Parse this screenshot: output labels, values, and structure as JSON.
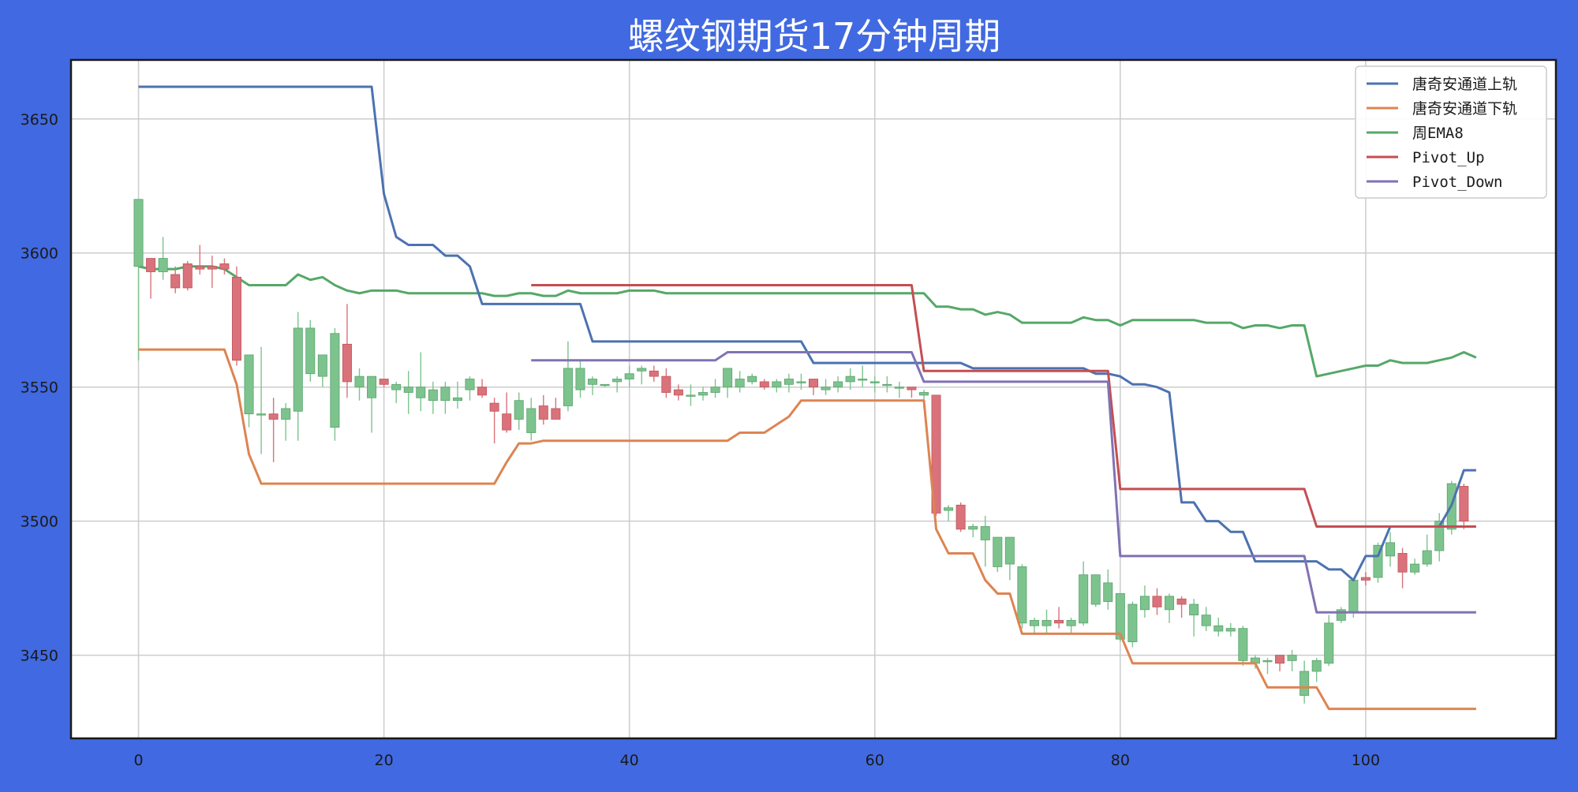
{
  "chart_data": {
    "type": "candlestick",
    "title": "螺纹钢期货17分钟周期",
    "xlabel": "",
    "ylabel": "",
    "xlim": [
      -5.5,
      115.5
    ],
    "ylim": [
      3419,
      3672
    ],
    "x_ticks": [
      0,
      20,
      40,
      60,
      80,
      100
    ],
    "y_ticks": [
      3450,
      3500,
      3550,
      3600,
      3650
    ],
    "grid": true,
    "legend_position": "top-right",
    "up_color": "#d9727a",
    "down_color": "#7dc38e",
    "colors": {
      "background": "#4169e1",
      "plot_background": "#ffffff",
      "grid": "#cccccc",
      "upper": "#4c72b0",
      "lower": "#dd8452",
      "ema": "#55a868",
      "pivot_up": "#c44e52",
      "pivot_down": "#8172b3"
    },
    "series": [
      {
        "key": "upper",
        "name": "唐奇安通道上轨",
        "color": "#4c72b0"
      },
      {
        "key": "lower",
        "name": "唐奇安通道下轨",
        "color": "#dd8452"
      },
      {
        "key": "ema",
        "name": "周EMA8",
        "color": "#55a868"
      },
      {
        "key": "pivot_up",
        "name": "Pivot_Up",
        "color": "#c44e52"
      },
      {
        "key": "pivot_down",
        "name": "Pivot_Down",
        "color": "#8172b3"
      }
    ],
    "lines": {
      "upper": [
        [
          0,
          3662
        ],
        [
          19,
          3662
        ],
        [
          20,
          3622
        ],
        [
          21,
          3606
        ],
        [
          22,
          3603
        ],
        [
          24,
          3603
        ],
        [
          25,
          3599
        ],
        [
          26,
          3599
        ],
        [
          27,
          3595
        ],
        [
          28,
          3581
        ],
        [
          36,
          3581
        ],
        [
          37,
          3567
        ],
        [
          54,
          3567
        ],
        [
          55,
          3559
        ],
        [
          67,
          3559
        ],
        [
          68,
          3557
        ],
        [
          77,
          3557
        ],
        [
          78,
          3555
        ],
        [
          79,
          3555
        ],
        [
          80,
          3554
        ],
        [
          81,
          3551
        ],
        [
          82,
          3551
        ],
        [
          83,
          3550
        ],
        [
          84,
          3548
        ],
        [
          85,
          3507
        ],
        [
          86,
          3507
        ],
        [
          87,
          3500
        ],
        [
          88,
          3500
        ],
        [
          89,
          3496
        ],
        [
          90,
          3496
        ],
        [
          91,
          3485
        ],
        [
          96,
          3485
        ],
        [
          97,
          3482
        ],
        [
          98,
          3482
        ],
        [
          99,
          3478
        ],
        [
          100,
          3487
        ],
        [
          101,
          3487
        ],
        [
          102,
          3498
        ],
        [
          106,
          3498
        ],
        [
          107,
          3506
        ],
        [
          108,
          3519
        ],
        [
          109,
          3519
        ]
      ],
      "lower": [
        [
          0,
          3564
        ],
        [
          7,
          3564
        ],
        [
          8,
          3551
        ],
        [
          9,
          3525
        ],
        [
          10,
          3514
        ],
        [
          29,
          3514
        ],
        [
          30,
          3522
        ],
        [
          31,
          3529
        ],
        [
          32,
          3529
        ],
        [
          33,
          3530
        ],
        [
          48,
          3530
        ],
        [
          49,
          3533
        ],
        [
          51,
          3533
        ],
        [
          52,
          3536
        ],
        [
          53,
          3539
        ],
        [
          54,
          3545
        ],
        [
          64,
          3545
        ],
        [
          65,
          3497
        ],
        [
          66,
          3488
        ],
        [
          68,
          3488
        ],
        [
          69,
          3478
        ],
        [
          70,
          3473
        ],
        [
          71,
          3473
        ],
        [
          72,
          3458
        ],
        [
          80,
          3458
        ],
        [
          81,
          3447
        ],
        [
          91,
          3447
        ],
        [
          92,
          3438
        ],
        [
          96,
          3438
        ],
        [
          97,
          3430
        ],
        [
          109,
          3430
        ]
      ],
      "ema": [
        [
          0,
          3595
        ],
        [
          1,
          3594
        ],
        [
          2,
          3594
        ],
        [
          3,
          3594
        ],
        [
          4,
          3595
        ],
        [
          5,
          3595
        ],
        [
          6,
          3595
        ],
        [
          7,
          3594
        ],
        [
          8,
          3591
        ],
        [
          9,
          3588
        ],
        [
          10,
          3588
        ],
        [
          11,
          3588
        ],
        [
          12,
          3588
        ],
        [
          13,
          3592
        ],
        [
          14,
          3590
        ],
        [
          15,
          3591
        ],
        [
          16,
          3588
        ],
        [
          17,
          3586
        ],
        [
          18,
          3585
        ],
        [
          19,
          3586
        ],
        [
          20,
          3586
        ],
        [
          21,
          3586
        ],
        [
          22,
          3585
        ],
        [
          23,
          3585
        ],
        [
          24,
          3585
        ],
        [
          25,
          3585
        ],
        [
          26,
          3585
        ],
        [
          27,
          3585
        ],
        [
          28,
          3585
        ],
        [
          29,
          3584
        ],
        [
          30,
          3584
        ],
        [
          31,
          3585
        ],
        [
          32,
          3585
        ],
        [
          33,
          3584
        ],
        [
          34,
          3584
        ],
        [
          35,
          3586
        ],
        [
          36,
          3585
        ],
        [
          37,
          3585
        ],
        [
          38,
          3585
        ],
        [
          39,
          3585
        ],
        [
          40,
          3586
        ],
        [
          41,
          3586
        ],
        [
          42,
          3586
        ],
        [
          43,
          3585
        ],
        [
          44,
          3585
        ],
        [
          45,
          3585
        ],
        [
          46,
          3585
        ],
        [
          47,
          3585
        ],
        [
          48,
          3585
        ],
        [
          49,
          3585
        ],
        [
          50,
          3585
        ],
        [
          51,
          3585
        ],
        [
          52,
          3585
        ],
        [
          53,
          3585
        ],
        [
          54,
          3585
        ],
        [
          55,
          3585
        ],
        [
          56,
          3585
        ],
        [
          57,
          3585
        ],
        [
          58,
          3585
        ],
        [
          59,
          3585
        ],
        [
          60,
          3585
        ],
        [
          61,
          3585
        ],
        [
          62,
          3585
        ],
        [
          63,
          3585
        ],
        [
          64,
          3585
        ],
        [
          65,
          3580
        ],
        [
          66,
          3580
        ],
        [
          67,
          3579
        ],
        [
          68,
          3579
        ],
        [
          69,
          3577
        ],
        [
          70,
          3578
        ],
        [
          71,
          3577
        ],
        [
          72,
          3574
        ],
        [
          73,
          3574
        ],
        [
          74,
          3574
        ],
        [
          75,
          3574
        ],
        [
          76,
          3574
        ],
        [
          77,
          3576
        ],
        [
          78,
          3575
        ],
        [
          79,
          3575
        ],
        [
          80,
          3573
        ],
        [
          81,
          3575
        ],
        [
          82,
          3575
        ],
        [
          83,
          3575
        ],
        [
          84,
          3575
        ],
        [
          85,
          3575
        ],
        [
          86,
          3575
        ],
        [
          87,
          3574
        ],
        [
          88,
          3574
        ],
        [
          89,
          3574
        ],
        [
          90,
          3572
        ],
        [
          91,
          3573
        ],
        [
          92,
          3573
        ],
        [
          93,
          3572
        ],
        [
          94,
          3573
        ],
        [
          95,
          3573
        ],
        [
          96,
          3554
        ],
        [
          97,
          3555
        ],
        [
          98,
          3556
        ],
        [
          99,
          3557
        ],
        [
          100,
          3558
        ],
        [
          101,
          3558
        ],
        [
          102,
          3560
        ],
        [
          103,
          3559
        ],
        [
          104,
          3559
        ],
        [
          105,
          3559
        ],
        [
          106,
          3560
        ],
        [
          107,
          3561
        ],
        [
          108,
          3563
        ],
        [
          109,
          3561
        ]
      ],
      "pivot_up": [
        [
          32,
          3588
        ],
        [
          63,
          3588
        ],
        [
          64,
          3556
        ],
        [
          79,
          3556
        ],
        [
          80,
          3512
        ],
        [
          95,
          3512
        ],
        [
          96,
          3498
        ],
        [
          109,
          3498
        ]
      ],
      "pivot_down": [
        [
          32,
          3560
        ],
        [
          47,
          3560
        ],
        [
          48,
          3563
        ],
        [
          63,
          3563
        ],
        [
          64,
          3552
        ],
        [
          79,
          3552
        ],
        [
          80,
          3487
        ],
        [
          95,
          3487
        ],
        [
          96,
          3466
        ],
        [
          109,
          3466
        ]
      ]
    },
    "candles": [
      [
        3595,
        3620,
        3560,
        3620
      ],
      [
        3598,
        3598,
        3583,
        3593
      ],
      [
        3593,
        3606,
        3590,
        3598
      ],
      [
        3592,
        3595,
        3585,
        3587
      ],
      [
        3596,
        3597,
        3586,
        3587
      ],
      [
        3595,
        3603,
        3592,
        3594
      ],
      [
        3595,
        3599,
        3587,
        3594
      ],
      [
        3596,
        3598,
        3592,
        3594
      ],
      [
        3591,
        3595,
        3558,
        3560
      ],
      [
        3540,
        3562,
        3535,
        3562
      ],
      [
        3540,
        3565,
        3525,
        3540
      ],
      [
        3540,
        3546,
        3522,
        3538
      ],
      [
        3538,
        3544,
        3530,
        3542
      ],
      [
        3541,
        3578,
        3530,
        3572
      ],
      [
        3555,
        3575,
        3552,
        3572
      ],
      [
        3554,
        3560,
        3550,
        3562
      ],
      [
        3535,
        3572,
        3530,
        3570
      ],
      [
        3566,
        3581,
        3546,
        3552
      ],
      [
        3550,
        3557,
        3545,
        3554
      ],
      [
        3546,
        3554,
        3533,
        3554
      ],
      [
        3553,
        3553,
        3550,
        3551
      ],
      [
        3549,
        3552,
        3544,
        3551
      ],
      [
        3548,
        3556,
        3540,
        3550
      ],
      [
        3546,
        3563,
        3541,
        3550
      ],
      [
        3545,
        3552,
        3540,
        3549
      ],
      [
        3545,
        3552,
        3540,
        3550
      ],
      [
        3545,
        3552,
        3542,
        3546
      ],
      [
        3549,
        3554,
        3545,
        3553
      ],
      [
        3550,
        3553,
        3546,
        3547
      ],
      [
        3544,
        3546,
        3529,
        3541
      ],
      [
        3540,
        3548,
        3533,
        3534
      ],
      [
        3538,
        3548,
        3534,
        3545
      ],
      [
        3533,
        3546,
        3530,
        3542
      ],
      [
        3543,
        3547,
        3536,
        3538
      ],
      [
        3542,
        3546,
        3538,
        3538
      ],
      [
        3543,
        3567,
        3541,
        3557
      ],
      [
        3549,
        3560,
        3546,
        3557
      ],
      [
        3551,
        3554,
        3547,
        3553
      ],
      [
        3551,
        3551,
        3550,
        3551
      ],
      [
        3552,
        3554,
        3548,
        3553
      ],
      [
        3553,
        3558,
        3550,
        3555
      ],
      [
        3556,
        3558,
        3551,
        3557
      ],
      [
        3556,
        3558,
        3552,
        3554
      ],
      [
        3554,
        3557,
        3546,
        3548
      ],
      [
        3549,
        3551,
        3545,
        3547
      ],
      [
        3547,
        3551,
        3543,
        3547
      ],
      [
        3547,
        3550,
        3545,
        3548
      ],
      [
        3548,
        3553,
        3546,
        3550
      ],
      [
        3550,
        3557,
        3546,
        3557
      ],
      [
        3550,
        3556,
        3548,
        3553
      ],
      [
        3552,
        3555,
        3551,
        3554
      ],
      [
        3552,
        3553,
        3549,
        3550
      ],
      [
        3550,
        3553,
        3548,
        3552
      ],
      [
        3551,
        3555,
        3548,
        3553
      ],
      [
        3552,
        3555,
        3549,
        3552
      ],
      [
        3553,
        3553,
        3547,
        3550
      ],
      [
        3549,
        3553,
        3547,
        3550
      ],
      [
        3550,
        3554,
        3548,
        3552
      ],
      [
        3552,
        3557,
        3549,
        3554
      ],
      [
        3553,
        3558,
        3550,
        3553
      ],
      [
        3552,
        3554,
        3548,
        3552
      ],
      [
        3551,
        3554,
        3548,
        3551
      ],
      [
        3550,
        3552,
        3546,
        3550
      ],
      [
        3550,
        3550,
        3546,
        3549
      ],
      [
        3547,
        3549,
        3542,
        3548
      ],
      [
        3547,
        3547,
        3502,
        3503
      ],
      [
        3504,
        3506,
        3500,
        3505
      ],
      [
        3506,
        3507,
        3496,
        3497
      ],
      [
        3497,
        3499,
        3494,
        3498
      ],
      [
        3493,
        3502,
        3483,
        3498
      ],
      [
        3483,
        3494,
        3481,
        3494
      ],
      [
        3484,
        3494,
        3478,
        3494
      ],
      [
        3462,
        3484,
        3460,
        3483
      ],
      [
        3461,
        3464,
        3458,
        3463
      ],
      [
        3461,
        3467,
        3458,
        3463
      ],
      [
        3463,
        3468,
        3460,
        3462
      ],
      [
        3461,
        3464,
        3458,
        3463
      ],
      [
        3462,
        3485,
        3461,
        3480
      ],
      [
        3469,
        3480,
        3468,
        3480
      ],
      [
        3470,
        3482,
        3467,
        3477
      ],
      [
        3456,
        3473,
        3455,
        3473
      ],
      [
        3455,
        3470,
        3453,
        3469
      ],
      [
        3467,
        3476,
        3464,
        3472
      ],
      [
        3472,
        3475,
        3465,
        3468
      ],
      [
        3467,
        3473,
        3462,
        3472
      ],
      [
        3471,
        3472,
        3464,
        3469
      ],
      [
        3465,
        3471,
        3457,
        3469
      ],
      [
        3461,
        3468,
        3459,
        3465
      ],
      [
        3459,
        3464,
        3457,
        3461
      ],
      [
        3459,
        3462,
        3457,
        3460
      ],
      [
        3448,
        3461,
        3446,
        3460
      ],
      [
        3447,
        3450,
        3445,
        3449
      ],
      [
        3448,
        3449,
        3443,
        3448
      ],
      [
        3450,
        3449,
        3444,
        3447
      ],
      [
        3448,
        3452,
        3444,
        3450
      ],
      [
        3435,
        3448,
        3432,
        3444
      ],
      [
        3444,
        3449,
        3440,
        3448
      ],
      [
        3447,
        3465,
        3446,
        3462
      ],
      [
        3463,
        3468,
        3462,
        3467
      ],
      [
        3466,
        3478,
        3464,
        3478
      ],
      [
        3479,
        3481,
        3476,
        3478
      ],
      [
        3479,
        3492,
        3477,
        3491
      ],
      [
        3487,
        3496,
        3483,
        3492
      ],
      [
        3488,
        3490,
        3475,
        3481
      ],
      [
        3481,
        3486,
        3480,
        3484
      ],
      [
        3484,
        3495,
        3483,
        3489
      ],
      [
        3489,
        3503,
        3485,
        3500
      ],
      [
        3497,
        3515,
        3495,
        3514
      ],
      [
        3513,
        3514,
        3497,
        3500
      ]
    ]
  }
}
